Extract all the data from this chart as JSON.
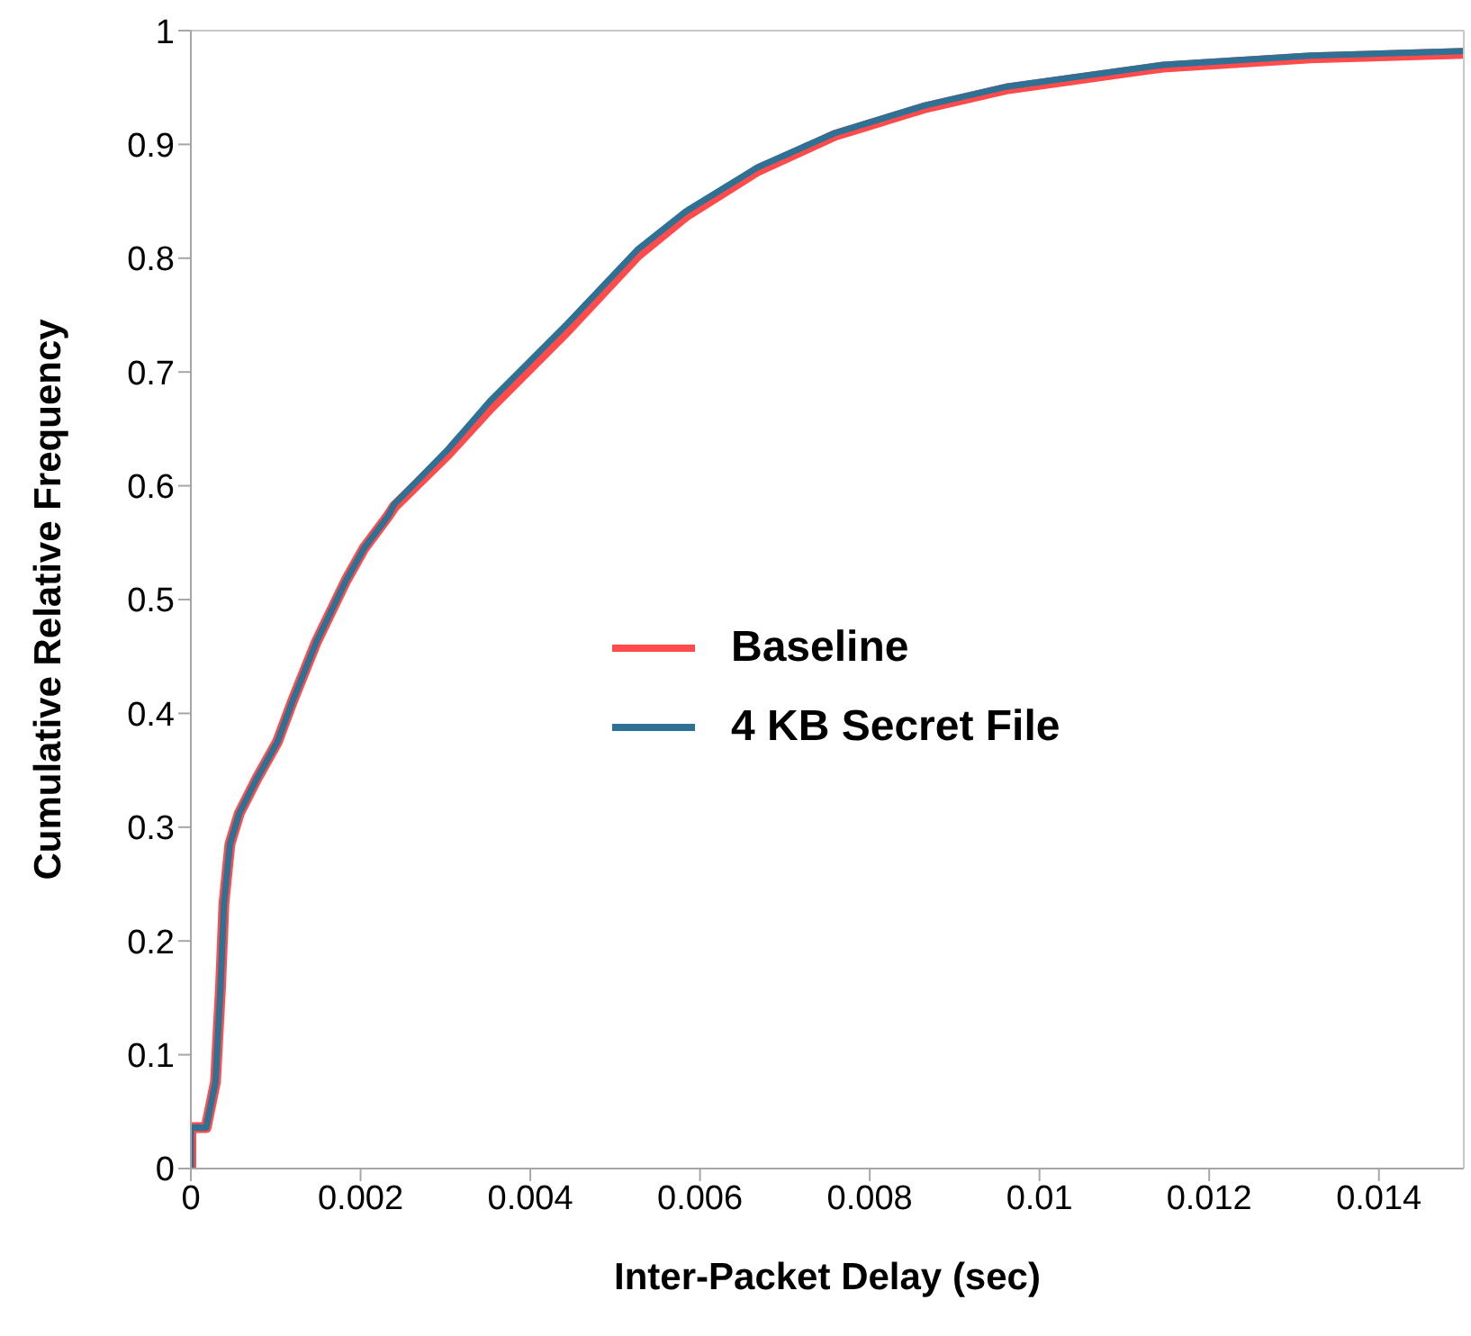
{
  "chart_data": {
    "type": "line",
    "xlabel": "Inter-Packet Delay (sec)",
    "ylabel": "Cumulative Relative Frequency",
    "xlim": [
      0,
      0.015
    ],
    "xticks": [
      0,
      0.002,
      0.004,
      0.006,
      0.008,
      0.01,
      0.012,
      0.014
    ],
    "ylim": [
      0,
      1
    ],
    "yticks": [
      0,
      0.1,
      0.2,
      0.3,
      0.4,
      0.5,
      0.6,
      0.7,
      0.8,
      0.9,
      1
    ],
    "legend": "center",
    "marker": "none",
    "line_style": "solid",
    "series": [
      {
        "name": "Baseline",
        "color": "#ff4b4b",
        "x": [
          0,
          0,
          0.00018,
          0.00029,
          0.00035,
          0.00039,
          0.00046,
          0.00057,
          0.00078,
          0.00102,
          0.0012,
          0.00148,
          0.00183,
          0.00204,
          0.00232,
          0.0024,
          0.00303,
          0.00352,
          0.00443,
          0.00527,
          0.00583,
          0.00668,
          0.00759,
          0.00794,
          0.00864,
          0.00963,
          0.01146,
          0.0132,
          0.015
        ],
        "values": [
          0,
          0.036,
          0.036,
          0.076,
          0.16,
          0.233,
          0.285,
          0.312,
          0.343,
          0.375,
          0.411,
          0.463,
          0.517,
          0.545,
          0.573,
          0.582,
          0.628,
          0.668,
          0.736,
          0.803,
          0.837,
          0.877,
          0.908,
          0.916,
          0.932,
          0.949,
          0.968,
          0.976,
          0.98
        ]
      },
      {
        "name": "4 KB Secret File",
        "color": "#2e7194",
        "x": [
          0,
          0,
          0.00018,
          0.00029,
          0.00035,
          0.00039,
          0.00046,
          0.00057,
          0.00078,
          0.00102,
          0.0012,
          0.00148,
          0.00183,
          0.00204,
          0.00232,
          0.0024,
          0.00303,
          0.00352,
          0.00443,
          0.00527,
          0.00583,
          0.00668,
          0.00759,
          0.00794,
          0.00864,
          0.00963,
          0.01146,
          0.0132,
          0.015
        ],
        "values": [
          0,
          0.036,
          0.036,
          0.076,
          0.16,
          0.233,
          0.285,
          0.312,
          0.343,
          0.375,
          0.411,
          0.463,
          0.517,
          0.545,
          0.573,
          0.584,
          0.632,
          0.674,
          0.742,
          0.808,
          0.841,
          0.88,
          0.91,
          0.918,
          0.934,
          0.951,
          0.97,
          0.978,
          0.982
        ]
      }
    ]
  }
}
